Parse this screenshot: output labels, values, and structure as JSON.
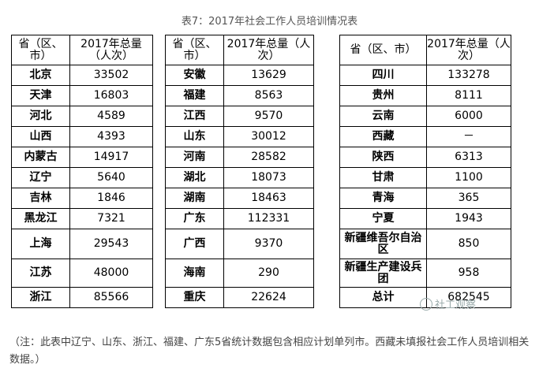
{
  "caption": "表7：2017年社会工作人员培训情况表",
  "header": {
    "col_region": "省（区、市）",
    "col_total": "2017年总量（人次）"
  },
  "tables": [
    {
      "rows": [
        {
          "region": "北京",
          "total": "33502"
        },
        {
          "region": "天津",
          "total": "16803"
        },
        {
          "region": "河北",
          "total": "4589"
        },
        {
          "region": "山西",
          "total": "4393"
        },
        {
          "region": "内蒙古",
          "total": "14917"
        },
        {
          "region": "辽宁",
          "total": "5640"
        },
        {
          "region": "吉林",
          "total": "1846"
        },
        {
          "region": "黑龙江",
          "total": "7321"
        },
        {
          "region": "上海",
          "total": "29543"
        },
        {
          "region": "江苏",
          "total": "48000"
        },
        {
          "region": "浙江",
          "total": "85566"
        }
      ]
    },
    {
      "rows": [
        {
          "region": "安徽",
          "total": "13629"
        },
        {
          "region": "福建",
          "total": "8563"
        },
        {
          "region": "江西",
          "total": "9570"
        },
        {
          "region": "山东",
          "total": "30012"
        },
        {
          "region": "河南",
          "total": "28582"
        },
        {
          "region": "湖北",
          "total": "18073"
        },
        {
          "region": "湖南",
          "total": "18463"
        },
        {
          "region": "广东",
          "total": "112331"
        },
        {
          "region": "广西",
          "total": "9370"
        },
        {
          "region": "海南",
          "total": "290"
        },
        {
          "region": "重庆",
          "total": "22624"
        }
      ]
    },
    {
      "rows": [
        {
          "region": "四川",
          "total": "133278"
        },
        {
          "region": "贵州",
          "total": "8111"
        },
        {
          "region": "云南",
          "total": "6000"
        },
        {
          "region": "西藏",
          "total": "－"
        },
        {
          "region": "陕西",
          "total": "6313"
        },
        {
          "region": "甘肃",
          "total": "1100"
        },
        {
          "region": "青海",
          "total": "365"
        },
        {
          "region": "宁夏",
          "total": "1943"
        },
        {
          "region": "新疆维吾尔自治区",
          "total": "850"
        },
        {
          "region": "新疆生产建设兵团",
          "total": "958"
        },
        {
          "region": "总计",
          "total": "682545"
        }
      ]
    }
  ],
  "note": "（注：此表中辽宁、山东、浙江、福建、广东5省统计数据包含相应计划单列市。西藏未填报社会工作人员培训相关数据。）",
  "watermark": "社工观察"
}
